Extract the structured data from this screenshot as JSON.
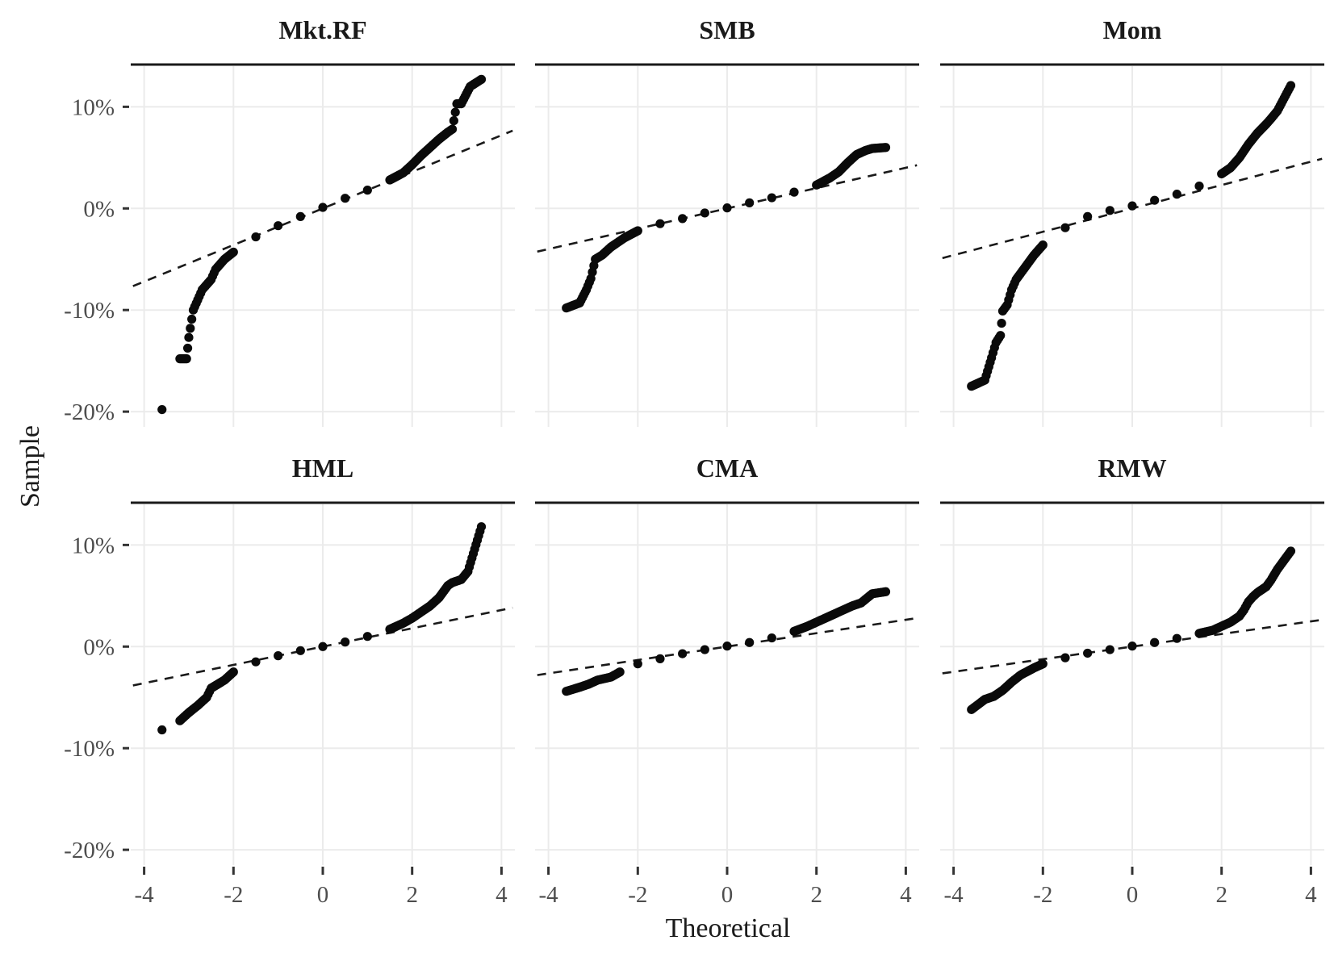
{
  "chart_data": {
    "type": "scatter",
    "xlabel": "Theoretical",
    "ylabel": "Sample",
    "xlim": [
      -4.3,
      4.3
    ],
    "ylim": [
      -21.5,
      14
    ],
    "x_ticks": [
      -4,
      -2,
      0,
      2,
      4
    ],
    "x_tick_labels": [
      "-4",
      "-2",
      "0",
      "2",
      "4"
    ],
    "y_ticks": [
      -20,
      -10,
      0,
      10
    ],
    "y_tick_labels": [
      "-20%",
      "-10%",
      "0%",
      "10%"
    ],
    "grid": true,
    "legend": "none",
    "panels": [
      {
        "label": "Mkt.RF",
        "ref_line": {
          "slope": 1.8,
          "intercept": 0.0
        },
        "points": [
          [
            -3.6,
            -19.8
          ],
          [
            -3.2,
            -14.8
          ],
          [
            -3.05,
            -14.8
          ],
          [
            -3.0,
            -12.7
          ],
          [
            -2.9,
            -10.0
          ],
          [
            -2.8,
            -9.0
          ],
          [
            -2.7,
            -8.0
          ],
          [
            -2.6,
            -7.5
          ],
          [
            -2.5,
            -7.0
          ],
          [
            -2.4,
            -6.0
          ],
          [
            -2.2,
            -5.0
          ],
          [
            -2.0,
            -4.3
          ],
          [
            -1.5,
            -2.8
          ],
          [
            -1.0,
            -1.7
          ],
          [
            -0.5,
            -0.8
          ],
          [
            0.0,
            0.1
          ],
          [
            0.5,
            1.0
          ],
          [
            1.0,
            1.8
          ],
          [
            1.5,
            2.8
          ],
          [
            1.8,
            3.5
          ],
          [
            2.0,
            4.3
          ],
          [
            2.2,
            5.2
          ],
          [
            2.4,
            6.0
          ],
          [
            2.6,
            6.8
          ],
          [
            2.8,
            7.5
          ],
          [
            2.9,
            7.8
          ],
          [
            3.0,
            10.3
          ],
          [
            3.1,
            10.3
          ],
          [
            3.3,
            12.0
          ],
          [
            3.55,
            12.7
          ]
        ]
      },
      {
        "label": "SMB",
        "ref_line": {
          "slope": 1.0,
          "intercept": 0.0
        },
        "points": [
          [
            -3.6,
            -9.8
          ],
          [
            -3.3,
            -9.3
          ],
          [
            -3.15,
            -8.0
          ],
          [
            -3.05,
            -6.9
          ],
          [
            -2.95,
            -5.0
          ],
          [
            -2.8,
            -4.6
          ],
          [
            -2.6,
            -3.8
          ],
          [
            -2.3,
            -2.9
          ],
          [
            -2.0,
            -2.2
          ],
          [
            -1.5,
            -1.5
          ],
          [
            -1.0,
            -1.0
          ],
          [
            -0.5,
            -0.45
          ],
          [
            0.0,
            0.05
          ],
          [
            0.5,
            0.55
          ],
          [
            1.0,
            1.05
          ],
          [
            1.5,
            1.6
          ],
          [
            2.0,
            2.3
          ],
          [
            2.3,
            3.0
          ],
          [
            2.5,
            3.6
          ],
          [
            2.7,
            4.5
          ],
          [
            2.9,
            5.3
          ],
          [
            3.1,
            5.7
          ],
          [
            3.25,
            5.9
          ],
          [
            3.55,
            6.0
          ]
        ]
      },
      {
        "label": "Mom",
        "ref_line": {
          "slope": 1.15,
          "intercept": 0.0
        },
        "points": [
          [
            -3.6,
            -17.5
          ],
          [
            -3.3,
            -16.9
          ],
          [
            -3.15,
            -14.7
          ],
          [
            -3.05,
            -13.2
          ],
          [
            -2.95,
            -12.5
          ],
          [
            -2.9,
            -10.1
          ],
          [
            -2.8,
            -9.5
          ],
          [
            -2.7,
            -8.0
          ],
          [
            -2.6,
            -7.0
          ],
          [
            -2.4,
            -5.8
          ],
          [
            -2.2,
            -4.6
          ],
          [
            -2.0,
            -3.6
          ],
          [
            -1.5,
            -1.9
          ],
          [
            -1.0,
            -0.8
          ],
          [
            -0.5,
            -0.2
          ],
          [
            0.0,
            0.25
          ],
          [
            0.5,
            0.8
          ],
          [
            1.0,
            1.4
          ],
          [
            1.5,
            2.2
          ],
          [
            2.0,
            3.4
          ],
          [
            2.2,
            4.0
          ],
          [
            2.4,
            5.0
          ],
          [
            2.6,
            6.3
          ],
          [
            2.8,
            7.4
          ],
          [
            3.0,
            8.3
          ],
          [
            3.1,
            8.8
          ],
          [
            3.25,
            9.6
          ],
          [
            3.55,
            12.1
          ]
        ]
      },
      {
        "label": "HML",
        "ref_line": {
          "slope": 0.9,
          "intercept": 0.0
        },
        "points": [
          [
            -3.6,
            -8.2
          ],
          [
            -3.2,
            -7.3
          ],
          [
            -3.0,
            -6.5
          ],
          [
            -2.8,
            -5.8
          ],
          [
            -2.6,
            -5.0
          ],
          [
            -2.5,
            -4.1
          ],
          [
            -2.2,
            -3.3
          ],
          [
            -2.0,
            -2.5
          ],
          [
            -1.5,
            -1.5
          ],
          [
            -1.0,
            -0.9
          ],
          [
            -0.5,
            -0.4
          ],
          [
            0.0,
            0.0
          ],
          [
            0.5,
            0.45
          ],
          [
            1.0,
            1.0
          ],
          [
            1.5,
            1.7
          ],
          [
            1.8,
            2.3
          ],
          [
            2.0,
            2.8
          ],
          [
            2.2,
            3.4
          ],
          [
            2.4,
            4.0
          ],
          [
            2.6,
            4.8
          ],
          [
            2.8,
            6.0
          ],
          [
            2.9,
            6.3
          ],
          [
            3.1,
            6.6
          ],
          [
            3.25,
            7.4
          ],
          [
            3.55,
            11.8
          ]
        ]
      },
      {
        "label": "CMA",
        "ref_line": {
          "slope": 0.66,
          "intercept": 0.0
        },
        "points": [
          [
            -3.6,
            -4.4
          ],
          [
            -3.3,
            -4.0
          ],
          [
            -3.1,
            -3.7
          ],
          [
            -2.9,
            -3.3
          ],
          [
            -2.6,
            -3.0
          ],
          [
            -2.4,
            -2.5
          ],
          [
            -2.0,
            -1.7
          ],
          [
            -1.5,
            -1.2
          ],
          [
            -1.0,
            -0.7
          ],
          [
            -0.5,
            -0.3
          ],
          [
            0.0,
            0.05
          ],
          [
            0.5,
            0.4
          ],
          [
            1.0,
            0.85
          ],
          [
            1.5,
            1.5
          ],
          [
            1.8,
            2.0
          ],
          [
            2.0,
            2.4
          ],
          [
            2.2,
            2.8
          ],
          [
            2.5,
            3.4
          ],
          [
            2.8,
            4.0
          ],
          [
            3.0,
            4.3
          ],
          [
            3.25,
            5.2
          ],
          [
            3.55,
            5.4
          ]
        ]
      },
      {
        "label": "RMW",
        "ref_line": {
          "slope": 0.62,
          "intercept": 0.0
        },
        "points": [
          [
            -3.6,
            -6.2
          ],
          [
            -3.3,
            -5.2
          ],
          [
            -3.1,
            -4.9
          ],
          [
            -2.9,
            -4.3
          ],
          [
            -2.7,
            -3.5
          ],
          [
            -2.5,
            -2.8
          ],
          [
            -2.2,
            -2.1
          ],
          [
            -2.0,
            -1.7
          ],
          [
            -1.5,
            -1.1
          ],
          [
            -1.0,
            -0.65
          ],
          [
            -0.5,
            -0.3
          ],
          [
            0.0,
            0.05
          ],
          [
            0.5,
            0.4
          ],
          [
            1.0,
            0.8
          ],
          [
            1.5,
            1.3
          ],
          [
            1.8,
            1.6
          ],
          [
            2.0,
            2.0
          ],
          [
            2.2,
            2.4
          ],
          [
            2.4,
            3.0
          ],
          [
            2.5,
            3.6
          ],
          [
            2.6,
            4.4
          ],
          [
            2.7,
            4.9
          ],
          [
            2.8,
            5.3
          ],
          [
            3.0,
            5.9
          ],
          [
            3.1,
            6.5
          ],
          [
            3.25,
            7.6
          ],
          [
            3.55,
            9.4
          ]
        ]
      }
    ]
  }
}
